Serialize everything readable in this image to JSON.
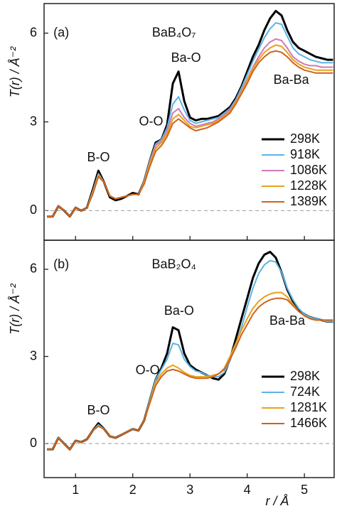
{
  "chart_data": [
    {
      "type": "line",
      "ylabel": "T(r) / Å⁻²",
      "xlim": [
        0.45,
        5.52
      ],
      "ylim": [
        -1,
        7
      ],
      "yticks": [
        0,
        3,
        6
      ],
      "legend": "right",
      "annotations": [
        {
          "text": "(a)",
          "x": 0.75,
          "y": 6.0
        },
        {
          "text": "BaB₄O₇",
          "x": 2.72,
          "y": 6.0
        },
        {
          "text": "B-O",
          "x": 1.4,
          "y": 1.78
        },
        {
          "text": "O-O",
          "x": 2.32,
          "y": 3.0
        },
        {
          "text": "Ba-O",
          "x": 2.93,
          "y": 5.15
        },
        {
          "text": "Ba-Ba",
          "x": 4.77,
          "y": 4.4
        }
      ],
      "x": [
        0.5,
        0.6,
        0.7,
        0.8,
        0.9,
        1.0,
        1.1,
        1.2,
        1.3,
        1.4,
        1.5,
        1.6,
        1.7,
        1.8,
        1.9,
        2.0,
        2.1,
        2.2,
        2.3,
        2.4,
        2.5,
        2.6,
        2.7,
        2.8,
        2.9,
        3.0,
        3.1,
        3.2,
        3.3,
        3.4,
        3.5,
        3.6,
        3.7,
        3.8,
        3.9,
        4.0,
        4.1,
        4.2,
        4.3,
        4.4,
        4.5,
        4.6,
        4.7,
        4.8,
        4.9,
        5.0,
        5.1,
        5.2,
        5.3,
        5.4,
        5.5
      ],
      "series": [
        {
          "name": "298K",
          "color": "#000000",
          "values": [
            -0.2,
            -0.2,
            0.15,
            0.0,
            -0.2,
            0.1,
            0.0,
            0.1,
            0.7,
            1.35,
            0.95,
            0.45,
            0.35,
            0.4,
            0.5,
            0.6,
            0.55,
            1.0,
            1.7,
            2.3,
            2.4,
            2.9,
            4.3,
            4.7,
            3.7,
            3.15,
            3.05,
            3.1,
            3.1,
            3.15,
            3.2,
            3.35,
            3.5,
            3.8,
            4.2,
            4.7,
            5.2,
            5.6,
            6.1,
            6.5,
            6.75,
            6.6,
            6.1,
            5.7,
            5.5,
            5.4,
            5.3,
            5.2,
            5.15,
            5.1,
            5.1
          ]
        },
        {
          "name": "918K",
          "color": "#5ab4e5",
          "values": [
            -0.2,
            -0.2,
            0.15,
            0.0,
            -0.2,
            0.1,
            0.0,
            0.1,
            0.65,
            1.25,
            0.95,
            0.5,
            0.4,
            0.45,
            0.5,
            0.55,
            0.55,
            1.0,
            1.7,
            2.25,
            2.4,
            2.8,
            3.6,
            3.85,
            3.4,
            3.05,
            2.95,
            3.0,
            3.05,
            3.1,
            3.15,
            3.3,
            3.45,
            3.75,
            4.15,
            4.6,
            5.05,
            5.45,
            5.85,
            6.15,
            6.35,
            6.3,
            5.9,
            5.5,
            5.3,
            5.2,
            5.1,
            5.05,
            5.0,
            5.0,
            5.0
          ]
        },
        {
          "name": "1086K",
          "color": "#cf7ab8",
          "values": [
            -0.2,
            -0.2,
            0.15,
            0.0,
            -0.2,
            0.1,
            0.0,
            0.1,
            0.6,
            1.2,
            0.95,
            0.5,
            0.4,
            0.45,
            0.5,
            0.55,
            0.55,
            0.95,
            1.65,
            2.2,
            2.35,
            2.7,
            3.3,
            3.45,
            3.15,
            2.95,
            2.85,
            2.9,
            2.95,
            3.0,
            3.1,
            3.25,
            3.4,
            3.7,
            4.05,
            4.45,
            4.85,
            5.2,
            5.5,
            5.7,
            5.8,
            5.75,
            5.5,
            5.2,
            5.05,
            4.95,
            4.9,
            4.9,
            4.85,
            4.85,
            4.85
          ]
        },
        {
          "name": "1228K",
          "color": "#e8a21a",
          "values": [
            -0.2,
            -0.2,
            0.15,
            0.0,
            -0.2,
            0.1,
            0.0,
            0.1,
            0.6,
            1.2,
            0.95,
            0.5,
            0.4,
            0.45,
            0.5,
            0.55,
            0.55,
            0.95,
            1.6,
            2.1,
            2.3,
            2.6,
            3.1,
            3.25,
            3.05,
            2.85,
            2.8,
            2.85,
            2.9,
            2.95,
            3.05,
            3.2,
            3.35,
            3.65,
            4.0,
            4.4,
            4.8,
            5.1,
            5.35,
            5.5,
            5.6,
            5.55,
            5.35,
            5.1,
            4.95,
            4.85,
            4.8,
            4.75,
            4.75,
            4.75,
            4.75
          ]
        },
        {
          "name": "1389K",
          "color": "#d0631b",
          "values": [
            -0.2,
            -0.2,
            0.15,
            0.0,
            -0.2,
            0.1,
            0.0,
            0.1,
            0.55,
            1.15,
            0.95,
            0.5,
            0.4,
            0.45,
            0.5,
            0.55,
            0.55,
            0.9,
            1.5,
            2.0,
            2.2,
            2.5,
            2.95,
            3.1,
            2.95,
            2.8,
            2.7,
            2.75,
            2.8,
            2.9,
            3.0,
            3.15,
            3.3,
            3.6,
            3.95,
            4.3,
            4.7,
            5.0,
            5.2,
            5.35,
            5.4,
            5.35,
            5.2,
            5.0,
            4.85,
            4.75,
            4.7,
            4.65,
            4.65,
            4.65,
            4.65
          ]
        }
      ]
    },
    {
      "type": "line",
      "xlabel": "r / Å",
      "ylabel": "T(r) / Å⁻²",
      "xlim": [
        0.45,
        5.52
      ],
      "xticks": [
        1,
        2,
        3,
        4,
        5
      ],
      "ylim": [
        -1.17,
        7
      ],
      "yticks": [
        0,
        3,
        6
      ],
      "legend": "right",
      "annotations": [
        {
          "text": "(b)",
          "x": 0.75,
          "y": 6.15
        },
        {
          "text": "BaB₂O₄",
          "x": 2.72,
          "y": 6.15
        },
        {
          "text": "B-O",
          "x": 1.4,
          "y": 1.12
        },
        {
          "text": "O-O",
          "x": 2.26,
          "y": 2.5
        },
        {
          "text": "Ba-O",
          "x": 2.81,
          "y": 4.55
        },
        {
          "text": "Ba-Ba",
          "x": 4.7,
          "y": 4.2
        }
      ],
      "x": [
        0.5,
        0.6,
        0.7,
        0.8,
        0.9,
        1.0,
        1.1,
        1.2,
        1.3,
        1.4,
        1.5,
        1.6,
        1.7,
        1.8,
        1.9,
        2.0,
        2.1,
        2.2,
        2.3,
        2.4,
        2.5,
        2.6,
        2.7,
        2.8,
        2.9,
        3.0,
        3.1,
        3.2,
        3.3,
        3.4,
        3.5,
        3.6,
        3.7,
        3.8,
        3.9,
        4.0,
        4.1,
        4.2,
        4.3,
        4.4,
        4.5,
        4.6,
        4.7,
        4.8,
        4.9,
        5.0,
        5.1,
        5.2,
        5.3,
        5.4,
        5.5
      ],
      "series": [
        {
          "name": "298K",
          "color": "#000000",
          "values": [
            -0.2,
            -0.2,
            0.2,
            0.0,
            -0.2,
            0.1,
            0.05,
            0.15,
            0.45,
            0.7,
            0.5,
            0.25,
            0.2,
            0.3,
            0.4,
            0.5,
            0.45,
            0.8,
            1.5,
            2.2,
            2.6,
            3.1,
            4.0,
            3.9,
            3.1,
            2.7,
            2.55,
            2.45,
            2.35,
            2.25,
            2.2,
            2.4,
            2.9,
            3.6,
            4.3,
            5.0,
            5.7,
            6.2,
            6.5,
            6.6,
            6.4,
            5.9,
            5.3,
            4.9,
            4.6,
            4.45,
            4.35,
            4.3,
            4.25,
            4.2,
            4.2
          ]
        },
        {
          "name": "724K",
          "color": "#5ab4e5",
          "values": [
            -0.2,
            -0.2,
            0.2,
            0.0,
            -0.2,
            0.1,
            0.05,
            0.15,
            0.45,
            0.65,
            0.5,
            0.25,
            0.2,
            0.3,
            0.4,
            0.5,
            0.45,
            0.8,
            1.5,
            2.2,
            2.55,
            2.9,
            3.45,
            3.4,
            2.9,
            2.65,
            2.5,
            2.45,
            2.35,
            2.3,
            2.3,
            2.45,
            2.85,
            3.4,
            4.0,
            4.7,
            5.35,
            5.85,
            6.15,
            6.3,
            6.25,
            5.9,
            5.35,
            4.95,
            4.65,
            4.45,
            4.35,
            4.3,
            4.25,
            4.2,
            4.2
          ]
        },
        {
          "name": "1281K",
          "color": "#e8a21a",
          "values": [
            -0.2,
            -0.2,
            0.2,
            0.0,
            -0.2,
            0.1,
            0.05,
            0.15,
            0.45,
            0.6,
            0.5,
            0.25,
            0.2,
            0.3,
            0.4,
            0.5,
            0.45,
            0.8,
            1.45,
            2.1,
            2.4,
            2.6,
            2.7,
            2.6,
            2.45,
            2.35,
            2.3,
            2.3,
            2.3,
            2.35,
            2.4,
            2.6,
            3.0,
            3.45,
            3.9,
            4.3,
            4.65,
            4.9,
            5.05,
            5.15,
            5.2,
            5.2,
            5.05,
            4.8,
            4.55,
            4.4,
            4.3,
            4.25,
            4.25,
            4.25,
            4.25
          ]
        },
        {
          "name": "1466K",
          "color": "#d0631b",
          "values": [
            -0.2,
            -0.2,
            0.2,
            0.0,
            -0.2,
            0.1,
            0.05,
            0.15,
            0.45,
            0.6,
            0.5,
            0.25,
            0.2,
            0.3,
            0.4,
            0.5,
            0.45,
            0.8,
            1.4,
            2.0,
            2.3,
            2.5,
            2.55,
            2.5,
            2.4,
            2.3,
            2.25,
            2.25,
            2.25,
            2.3,
            2.4,
            2.55,
            2.9,
            3.3,
            3.75,
            4.1,
            4.45,
            4.7,
            4.85,
            4.95,
            5.0,
            5.0,
            4.95,
            4.75,
            4.55,
            4.4,
            4.3,
            4.25,
            4.25,
            4.25,
            4.25
          ]
        }
      ]
    }
  ]
}
